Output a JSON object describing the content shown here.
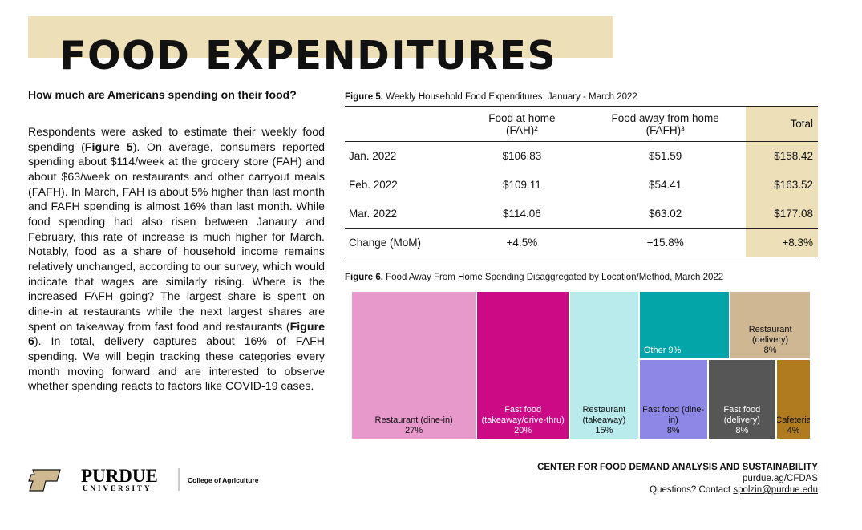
{
  "header": {
    "title": "FOOD EXPENDITURES"
  },
  "article": {
    "heading": "How much are Americans spending on their food?",
    "body": [
      "Respondents were asked to estimate their weekly food spending (",
      "Figure 5",
      "). On average, consumers reported spending about $114/week at the grocery store (FAH) and about $63/week on restaurants and other carryout meals (FAFH). In March, FAH is about 5% higher than last month and FAFH spending is almost 16% than last month. While food spending had also risen between Janaury and February, this rate of increase is much higher for March. Notably, food as a share of household income remains relatively unchanged, according to our survey, which would indicate that wages are similarly rising. Where is the increased FAFH going? The largest share is spent on dine-in at restaurants while the next largest shares are spent on takeaway from fast food and restaurants (",
      "Figure 6",
      "). In total, delivery captures about 16% of FAFH spending. We will begin tracking these categories every month moving forward and are interested to observe whether spending reacts to factors like COVID-19 cases."
    ]
  },
  "figure5": {
    "label": "Figure 5.",
    "caption": "Weekly Household Food Expenditures, January - March 2022",
    "columns": [
      {
        "name": "Food at home",
        "unit": "(FAH)²"
      },
      {
        "name": "Food away from home",
        "unit": "(FAFH)³"
      },
      {
        "name": "Total"
      }
    ],
    "rows": [
      [
        "Jan. 2022",
        "$106.83",
        "$51.59",
        "$158.42"
      ],
      [
        "Feb. 2022",
        "$109.11",
        "$54.41",
        "$163.52"
      ],
      [
        "Mar. 2022",
        "$114.06",
        "$63.02",
        "$177.08"
      ],
      [
        "Change (MoM)",
        "+4.5%",
        "+15.8%",
        "+8.3%"
      ]
    ]
  },
  "chart_data": {
    "type": "treemap",
    "label": "Figure 6.",
    "title": "Food Away From Home Spending Disaggregated by Location/Method, March 2022",
    "categories": [
      "Restaurant (dine-in)",
      "Fast food (takeaway/drive-thru)",
      "Restaurant (takeaway)",
      "Other",
      "Restaurant (delivery)",
      "Fast food (dine-in)",
      "Fast food (delivery)",
      "Cafeteria"
    ],
    "values": [
      27,
      20,
      15,
      9,
      8,
      8,
      8,
      4
    ],
    "value_labels": [
      "27%",
      "20%",
      "15%",
      "9%",
      "8%",
      "8%",
      "8%",
      "4%"
    ],
    "colors": [
      "#e899cb",
      "#cc0a85",
      "#b9ebec",
      "#04a5a8",
      "#d0b793",
      "#8d87e5",
      "#565656",
      "#b07b1f"
    ]
  },
  "footer": {
    "brand": "PURDUE",
    "brand_sub": "UNIVERSITY",
    "college": "College of Agriculture",
    "center": "CENTER FOR FOOD DEMAND ANALYSIS AND SUSTAINABILITY",
    "url": "purdue.ag/CFDAS",
    "contact": "Questions? Contact ",
    "email": "spolzin@purdue.edu"
  }
}
